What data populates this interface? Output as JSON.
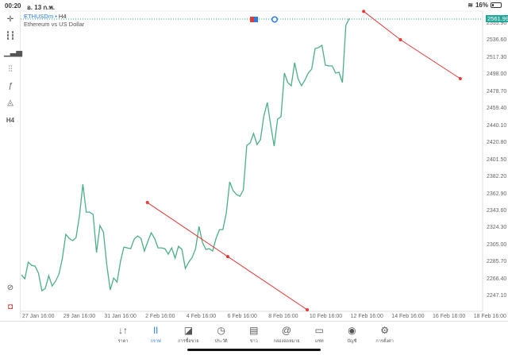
{
  "status_bar": {
    "time": "00:20",
    "date": "อ. 13 ก.พ.",
    "battery": "16%",
    "battery_level": 0.16
  },
  "symbol": {
    "name": "ETHUSDm",
    "timeframe": "H4",
    "description": "Ethereum vs US Dollar"
  },
  "left_toolbar": [
    {
      "icon": "crosshair-icon",
      "label": ""
    },
    {
      "icon": "candlestick-icon",
      "label": ""
    },
    {
      "icon": "indicators-icon",
      "label": ""
    },
    {
      "icon": "settings-sliders-icon",
      "label": ""
    },
    {
      "icon": "function-icon",
      "label": "ƒ"
    },
    {
      "icon": "shapes-icon",
      "label": ""
    },
    {
      "icon": "timeframe-icon",
      "label": "H4"
    }
  ],
  "current_price": "2561.99",
  "colors": {
    "line": "#4caf87",
    "trend": "#e53935",
    "price_tag": "#26a69a",
    "active": "#2a7de1"
  },
  "price_axis": [
    "2555.90",
    "2536.60",
    "2517.30",
    "2498.00",
    "2478.70",
    "2459.40",
    "2440.10",
    "2420.80",
    "2401.50",
    "2382.20",
    "2362.90",
    "2343.60",
    "2324.30",
    "2305.00",
    "2285.70",
    "2266.40",
    "2247.10"
  ],
  "date_axis": [
    "27 Jan 16:00",
    "29 Jan 16:00",
    "31 Jan 16:00",
    "2 Feb 16:00",
    "4 Feb 16:00",
    "6 Feb 16:00",
    "8 Feb 16:00",
    "10 Feb 16:00",
    "12 Feb 16:00",
    "14 Feb 16:00",
    "16 Feb 16:00",
    "18 Feb 16:00"
  ],
  "chart_data": {
    "type": "line",
    "ylim": [
      2230,
      2575
    ],
    "close_prices": [
      2271.5,
      2267,
      2285.9,
      2282.3,
      2281.4,
      2273.3,
      2253.5,
      2256.2,
      2270.6,
      2258.9,
      2264.3,
      2272.4,
      2290.4,
      2317.4,
      2312.9,
      2310.2,
      2313.8,
      2338.1,
      2374.1,
      2342.6,
      2342.6,
      2339.9,
      2296.7,
      2327.3,
      2320.1,
      2282.3,
      2254.4,
      2267.9,
      2263.4,
      2286.8,
      2303,
      2302.1,
      2301.2,
      2312,
      2315.6,
      2312.9,
      2298.5,
      2309.3,
      2319.2,
      2312.9,
      2302.1,
      2302.1,
      2301.2,
      2294.9,
      2302.1,
      2290.4,
      2303.9,
      2300.3,
      2278.7,
      2285.9,
      2291.3,
      2301.2,
      2326.4,
      2308.4,
      2300.3,
      2301.2,
      2298.5,
      2312.9,
      2322.8,
      2322.8,
      2341.7,
      2376.8,
      2366.9,
      2362.4,
      2360.6,
      2367.8,
      2418.2,
      2420.9,
      2431.7,
      2419.1,
      2424.5,
      2451.5,
      2466.8,
      2440.7,
      2417.3,
      2447.9,
      2450.6,
      2500.1,
      2489.3,
      2485.7,
      2511.8,
      2493.8,
      2485.7,
      2492,
      2500.1,
      2504.6,
      2528,
      2528.9,
      2531.6,
      2509.1,
      2508.2,
      2508.2,
      2500.1,
      2501,
      2489.3,
      2554.1,
      2561.99
    ],
    "trend_lines": [
      {
        "points": [
          {
            "date": "1 Feb 23:00",
            "price": 2353.4
          },
          {
            "date": "5 Feb 21:00",
            "price": 2292.2
          },
          {
            "date": "9 Feb 18:00",
            "price": 2231.9
          }
        ]
      },
      {
        "points": [
          {
            "date": "12 Feb 12:00",
            "price": 2570
          },
          {
            "date": "14 Feb 07:00",
            "price": 2537.9
          },
          {
            "date": "17 Feb 05:00",
            "price": 2493.8
          }
        ]
      }
    ]
  },
  "bottom_nav": [
    {
      "icon": "↓↑",
      "label": "ราคา"
    },
    {
      "icon": "ǀǀ",
      "label": "กราฟ",
      "active": true
    },
    {
      "icon": "◪",
      "label": "การซื้อขาย"
    },
    {
      "icon": "◷",
      "label": "ประวัติ"
    },
    {
      "icon": "▤",
      "label": "ข่าว"
    },
    {
      "icon": "@",
      "label": "กล่องจดหมาย"
    },
    {
      "icon": "▭",
      "label": "แชท"
    },
    {
      "icon": "◉",
      "label": "บัญชี"
    },
    {
      "icon": "⚙",
      "label": "การตั้งค่า"
    }
  ]
}
